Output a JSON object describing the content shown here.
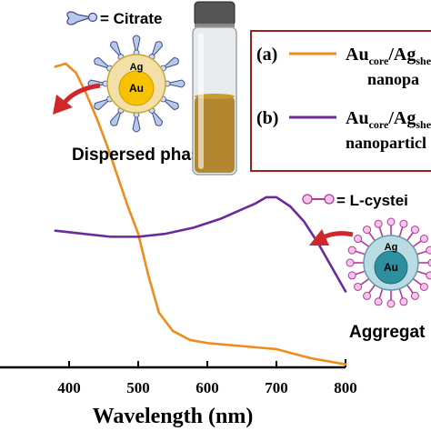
{
  "chart_data": {
    "type": "line",
    "title": "",
    "xlabel": "Wavelength (nm)",
    "ylabel": "",
    "xlim": [
      300,
      800
    ],
    "ylim": [
      0,
      1
    ],
    "x_ticks": [
      400,
      500,
      600,
      700,
      800
    ],
    "grid": false,
    "legend_position": "top-right",
    "series": [
      {
        "name": "Au_core/Ag_shell nanopa",
        "legend_label": "(a)",
        "color": "#ee8c1e",
        "x": [
          380,
          395,
          410,
          425,
          440,
          455,
          470,
          485,
          500,
          515,
          530,
          550,
          575,
          600,
          650,
          700,
          750,
          800
        ],
        "y": [
          0.99,
          1.0,
          0.97,
          0.9,
          0.82,
          0.73,
          0.63,
          0.53,
          0.44,
          0.3,
          0.18,
          0.12,
          0.09,
          0.08,
          0.07,
          0.06,
          0.03,
          0.01
        ]
      },
      {
        "name": "Au_core/Ag_shell nanoparticl",
        "legend_label": "(b)",
        "color": "#6a2b9a",
        "x": [
          380,
          420,
          460,
          500,
          540,
          580,
          620,
          650,
          670,
          685,
          700,
          720,
          740,
          760,
          780,
          800
        ],
        "y": [
          0.45,
          0.44,
          0.43,
          0.43,
          0.44,
          0.46,
          0.49,
          0.52,
          0.54,
          0.56,
          0.56,
          0.53,
          0.48,
          0.41,
          0.33,
          0.25
        ]
      }
    ]
  },
  "legend": {
    "a_marker": "(a)",
    "a_main": "Au",
    "a_sub1": "core",
    "a_mid": "/Ag",
    "a_sub2": "she",
    "a_line2": "nanopa",
    "b_marker": "(b)",
    "b_main": "Au",
    "b_sub1": "core",
    "b_mid": "/Ag",
    "b_sub2": "she",
    "b_line2": "nanoparticl",
    "border_color": "#a02020"
  },
  "annotations": {
    "citrate_label": "= Citrate",
    "lcysteine_label": "= L-cystei",
    "dispersed_label": "Dispersed phase",
    "aggregate_label": "Aggregat",
    "ag_label": "Ag",
    "au_label": "Au",
    "vial_liquid_color": "#a8760e",
    "arrow_color": "#d02828"
  }
}
